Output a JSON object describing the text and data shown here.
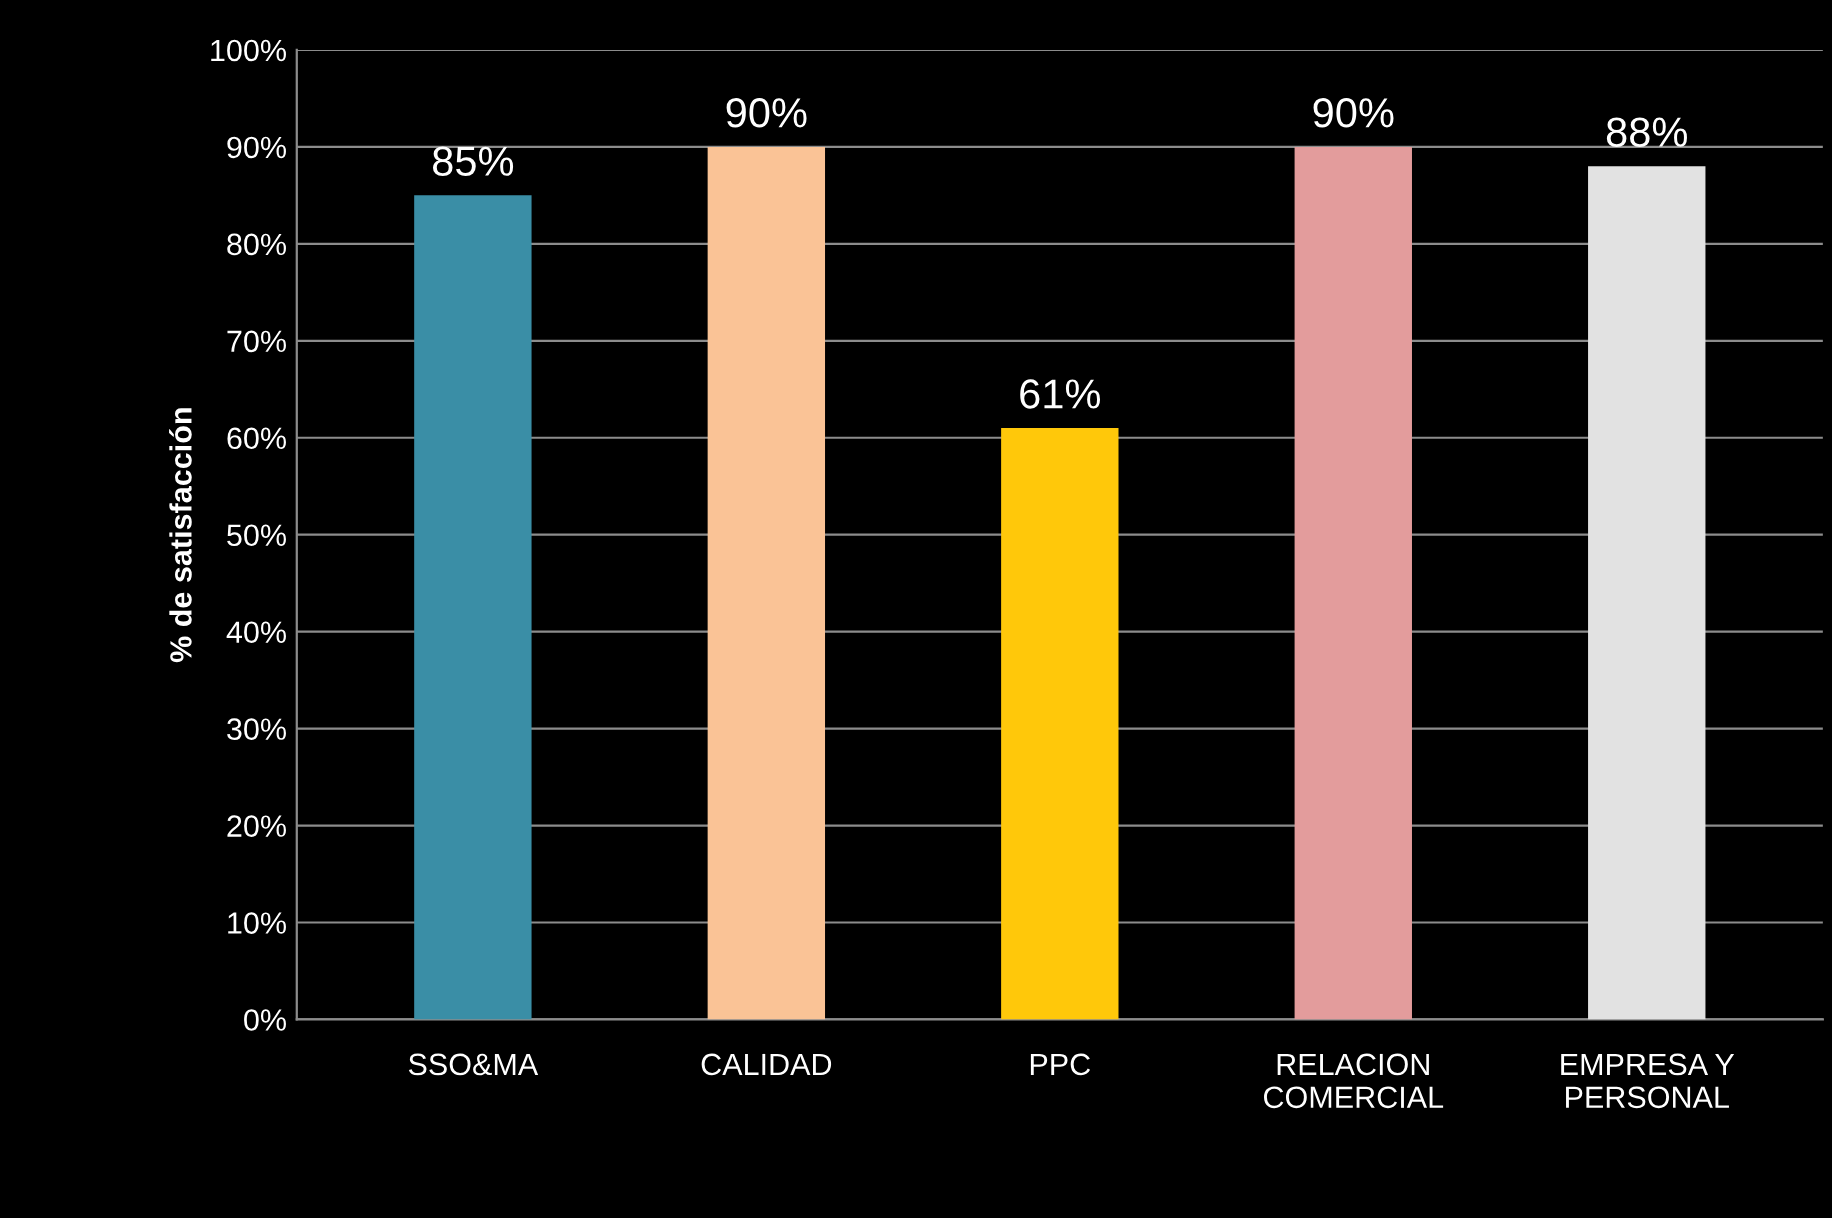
{
  "chart_data": {
    "type": "bar",
    "ylabel": "% de satisfacción",
    "categories": [
      "SSO&MA",
      "CALIDAD",
      "PPC",
      "RELACION COMERCIAL",
      "EMPRESA Y PERSONAL"
    ],
    "values": [
      85,
      90,
      61,
      90,
      88
    ],
    "colors": [
      "#3a8ea6",
      "#fac396",
      "#ffc80a",
      "#e39c9c",
      "#e2e2e2"
    ],
    "value_labels": [
      "85%",
      "90%",
      "61%",
      "90%",
      "88%"
    ],
    "ylim": [
      0,
      100
    ],
    "yticks": [
      {
        "value": 0,
        "label": "0%"
      },
      {
        "value": 10,
        "label": "10%"
      },
      {
        "value": 20,
        "label": "20%"
      },
      {
        "value": 30,
        "label": "30%"
      },
      {
        "value": 40,
        "label": "40%"
      },
      {
        "value": 50,
        "label": "50%"
      },
      {
        "value": 60,
        "label": "60%"
      },
      {
        "value": 70,
        "label": "70%"
      },
      {
        "value": 80,
        "label": "80%"
      },
      {
        "value": 90,
        "label": "90%"
      },
      {
        "value": 100,
        "label": "100%"
      }
    ],
    "grid": "y",
    "legend": false
  }
}
